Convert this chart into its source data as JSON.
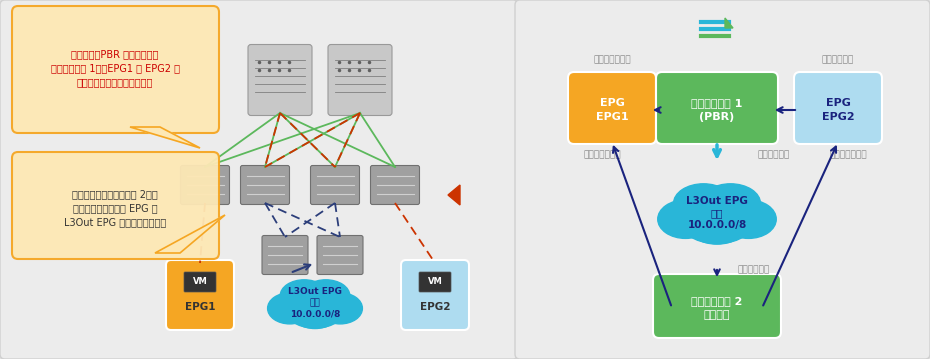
{
  "bg_color": "#e0e0e0",
  "panel_color": "#e8e8e8",
  "balloon1_text": "水平方向（PBR が設定された\nコントラクト 1）：EPG1 と EPG2 の\n間にファイアウォールを挿入",
  "balloon2_text": "垂直方向（コントラクト 2）：\nファイアウォールを EPG と\nL3Out EPG の間のパスに配置",
  "orange_color": "#f5a623",
  "green_color": "#5cb85c",
  "blue_color": "#29b6d8",
  "lightblue_color": "#aedcf0",
  "arrow_dark": "#1a237e",
  "arrow_cyan": "#29b6d8",
  "text_red": "#cc0000",
  "gray_text": "#888888",
  "label_consumer": "コンシューマー",
  "label_provider": "プロバイダー",
  "label_contract": "コントラクト",
  "epg1_label": "EPG\nEPG1",
  "epg2_label": "EPG\nEPG2",
  "contract1_label": "コントラクト 1\n(PBR)",
  "l3out_label": "L3Out EPG\n外部\n10.0.0.0/8",
  "contract2_label": "コントラクト 2\n（許可）"
}
